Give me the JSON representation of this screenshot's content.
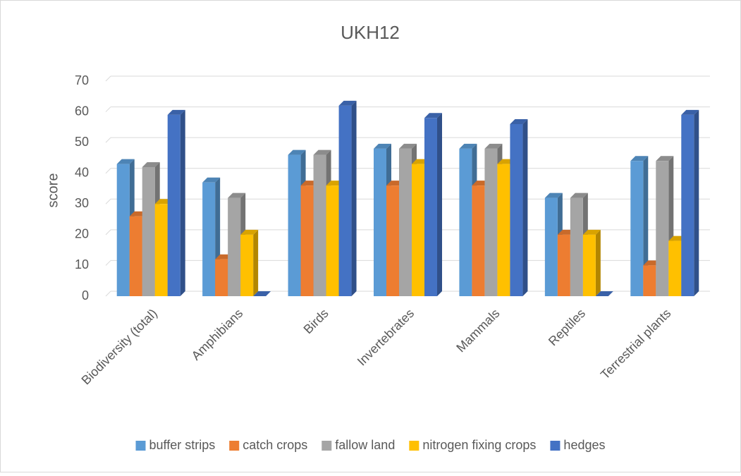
{
  "chart_data": {
    "type": "bar3d",
    "title": "UKH12",
    "y_label": "score",
    "categories": [
      "Biodiversity (total)",
      "Amphibians",
      "Birds",
      "Invertebrates",
      "Mammals",
      "Reptiles",
      "Terrestrial plants"
    ],
    "series": [
      {
        "name": "buffer strips",
        "color": "#5b9bd5",
        "values": [
          43,
          37,
          46,
          48,
          48,
          32,
          44
        ]
      },
      {
        "name": "catch crops",
        "color": "#ed7d31",
        "values": [
          26,
          12,
          36,
          36,
          36,
          20,
          10
        ]
      },
      {
        "name": "fallow land",
        "color": "#a5a5a5",
        "values": [
          42,
          32,
          46,
          48,
          48,
          32,
          44
        ]
      },
      {
        "name": "nitrogen fixing crops",
        "color": "#ffc000",
        "values": [
          30,
          20,
          36,
          43,
          43,
          20,
          18
        ]
      },
      {
        "name": "hedges",
        "color": "#4472c4",
        "values": [
          59,
          0,
          62,
          58,
          56,
          0,
          59
        ]
      }
    ],
    "ylim": [
      0,
      70
    ],
    "yticks": [
      0,
      10,
      20,
      30,
      40,
      50,
      60,
      70
    ],
    "grid": true,
    "legend": "bottom"
  }
}
